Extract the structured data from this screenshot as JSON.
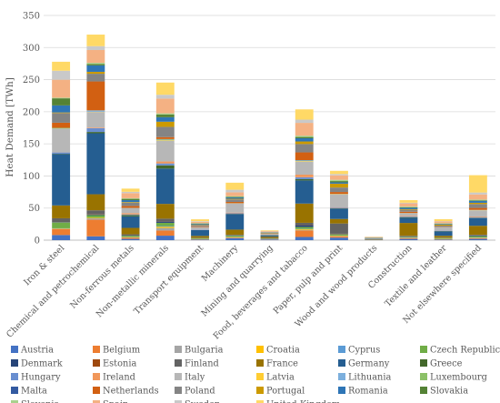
{
  "chart_data": {
    "type": "bar",
    "stacked": true,
    "ylabel": "Heat Demand [TWh]",
    "xlabel": "",
    "ylim": [
      0,
      350
    ],
    "yticks": [
      0,
      50,
      100,
      150,
      200,
      250,
      300,
      350
    ],
    "grid": true,
    "legend_position": "bottom",
    "categories": [
      "Iron & steel",
      "Chemical and petrochemical",
      "Non-ferrous metals",
      "Non-metallic minerals",
      "Transport equipment",
      "Machinery",
      "Mining and quarrying",
      "Food, beverages and tabacco",
      "Paper, pulp and print",
      "Wood and wood products",
      "Construction",
      "Textile and leather",
      "Not elsewhere specified"
    ],
    "series": [
      {
        "name": "Austria",
        "color": "#4472C4",
        "values": [
          8,
          6,
          2,
          7,
          1,
          3,
          1,
          5,
          4,
          0.2,
          2,
          1,
          2
        ]
      },
      {
        "name": "Belgium",
        "color": "#ED7D31",
        "values": [
          9,
          26,
          2,
          8,
          0.5,
          1,
          0.3,
          10,
          2,
          0.1,
          1,
          0.5,
          1
        ]
      },
      {
        "name": "Bulgaria",
        "color": "#A5A5A5",
        "values": [
          1,
          2,
          0.5,
          4,
          0.2,
          0.5,
          0.2,
          1,
          0.5,
          0,
          0.5,
          0.3,
          0.5
        ]
      },
      {
        "name": "Croatia",
        "color": "#FFC000",
        "values": [
          0.5,
          1,
          0.3,
          2,
          0.2,
          0.3,
          0.2,
          1,
          0.5,
          0,
          0.5,
          0.3,
          0.5
        ]
      },
      {
        "name": "Cyprus",
        "color": "#5B9BD5",
        "values": [
          0,
          0,
          0,
          1,
          0,
          0,
          0,
          0.5,
          0,
          0,
          0.1,
          0,
          0.2
        ]
      },
      {
        "name": "Czech Republic",
        "color": "#70AD47",
        "values": [
          9,
          4,
          2,
          5,
          1,
          2,
          0.5,
          3,
          2,
          0.2,
          1,
          1,
          2
        ]
      },
      {
        "name": "Denmark",
        "color": "#264478",
        "values": [
          0.5,
          1,
          0.3,
          2,
          0.2,
          0.5,
          0.2,
          3,
          0.5,
          0.1,
          0.5,
          0.2,
          1
        ]
      },
      {
        "name": "Estonia",
        "color": "#9E480E",
        "values": [
          0.1,
          0.5,
          0,
          0.5,
          0,
          0.1,
          0.1,
          0.5,
          0.5,
          0.1,
          0.2,
          0,
          0.2
        ]
      },
      {
        "name": "Finland",
        "color": "#636363",
        "values": [
          6,
          6,
          2,
          4,
          0.5,
          1,
          1,
          3,
          16,
          0.5,
          1,
          0.5,
          1
        ]
      },
      {
        "name": "France",
        "color": "#997300",
        "values": [
          20,
          25,
          10,
          23,
          3,
          8,
          2,
          30,
          7,
          0.5,
          20,
          3,
          14
        ]
      },
      {
        "name": "Germany",
        "color": "#255E91",
        "values": [
          80,
          95,
          18,
          55,
          9,
          24,
          2,
          36,
          16,
          0.5,
          8,
          7,
          12
        ]
      },
      {
        "name": "Greece",
        "color": "#43682B",
        "values": [
          0.5,
          2,
          2,
          5,
          0.2,
          0.5,
          0.5,
          2,
          0.5,
          0.1,
          1,
          0.5,
          0.5
        ]
      },
      {
        "name": "Hungary",
        "color": "#698ED0",
        "values": [
          2,
          6,
          1,
          3,
          0.5,
          1,
          0.2,
          3,
          1,
          0.1,
          1,
          0.5,
          1
        ]
      },
      {
        "name": "Ireland",
        "color": "#F1975A",
        "values": [
          0.1,
          1,
          2,
          3,
          0.2,
          1,
          0.2,
          4,
          0.5,
          0.1,
          1,
          0.2,
          1
        ]
      },
      {
        "name": "Italy",
        "color": "#B7B7B7",
        "values": [
          37,
          24,
          8,
          32,
          4,
          14,
          1,
          20,
          20,
          0.5,
          4,
          5,
          9
        ]
      },
      {
        "name": "Latvia",
        "color": "#FFCD33",
        "values": [
          0.1,
          0.5,
          0,
          1,
          0,
          0.2,
          0.1,
          1,
          0.5,
          0.1,
          0.2,
          0.1,
          0.5
        ]
      },
      {
        "name": "Lithuania",
        "color": "#7CAFDD",
        "values": [
          0.1,
          2,
          0.1,
          1,
          0,
          0.2,
          0.1,
          1,
          0.5,
          0,
          0.2,
          0.1,
          0.5
        ]
      },
      {
        "name": "Luxembourg",
        "color": "#8CC168",
        "values": [
          1,
          0.2,
          0.1,
          1,
          0,
          0.2,
          0,
          0.5,
          0,
          0,
          0.1,
          0,
          0.2
        ]
      },
      {
        "name": "Malta",
        "color": "#335AA1",
        "values": [
          0,
          0,
          0,
          0,
          0,
          0,
          0,
          0.2,
          0,
          0,
          0,
          0,
          0.1
        ]
      },
      {
        "name": "Netherlands",
        "color": "#D26012",
        "values": [
          8,
          45,
          3,
          3,
          1,
          2,
          0.3,
          12,
          3,
          0.1,
          2,
          0.5,
          3
        ]
      },
      {
        "name": "Poland",
        "color": "#848484",
        "values": [
          15,
          12,
          5,
          16,
          2,
          4,
          1,
          13,
          7,
          0.5,
          3,
          2,
          6
        ]
      },
      {
        "name": "Portugal",
        "color": "#CC9A00",
        "values": [
          1,
          3,
          1,
          8,
          0.5,
          1,
          0.5,
          4,
          6,
          0.2,
          1,
          1.5,
          2
        ]
      },
      {
        "name": "Romania",
        "color": "#2E75B6",
        "values": [
          11,
          10,
          3,
          7,
          1,
          2,
          0.5,
          5,
          2,
          0.2,
          2,
          1,
          3
        ]
      },
      {
        "name": "Slovakia",
        "color": "#548235",
        "values": [
          11,
          2,
          2,
          4,
          1,
          1,
          0.3,
          2,
          2,
          0.2,
          1,
          0.5,
          1
        ]
      },
      {
        "name": "Slovenia",
        "color": "#A9D18E",
        "values": [
          1,
          2,
          1,
          2,
          0.5,
          1,
          0.2,
          2,
          2,
          0.1,
          1,
          0.5,
          1
        ]
      },
      {
        "name": "Spain",
        "color": "#F4B183",
        "values": [
          28,
          20,
          8,
          23,
          2,
          6,
          1.5,
          20,
          7,
          0.5,
          5,
          3,
          8
        ]
      },
      {
        "name": "Sweden",
        "color": "#C9C9C9",
        "values": [
          14,
          6,
          2,
          6,
          1,
          4,
          0.5,
          5,
          2,
          0.2,
          1,
          0.5,
          3
        ]
      },
      {
        "name": "United Kingdom",
        "color": "#FFD966",
        "values": [
          14,
          18,
          5,
          19,
          3,
          11,
          1,
          16,
          5,
          0.3,
          4,
          3,
          27
        ]
      }
    ]
  }
}
